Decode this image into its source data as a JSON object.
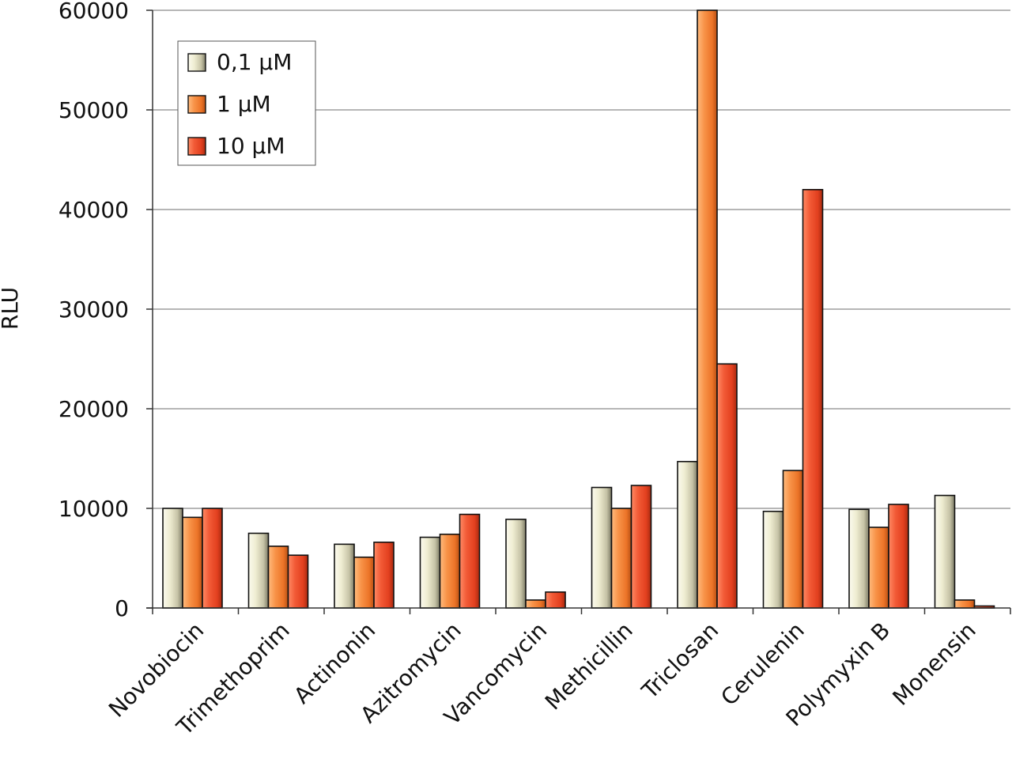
{
  "chart_data": {
    "type": "bar",
    "title": "",
    "xlabel": "",
    "ylabel": "RLU",
    "ylim": [
      0,
      60000
    ],
    "yticks": [
      0,
      10000,
      20000,
      30000,
      40000,
      50000,
      60000
    ],
    "ytick_labels": [
      "0",
      "10000",
      "20000",
      "30000",
      "40000",
      "50000",
      "60000"
    ],
    "grid": true,
    "legend_position": "top-left",
    "categories": [
      "Novobiocin",
      "Trimethoprim",
      "Actinonin",
      "Azitromycin",
      "Vancomycin",
      "Methicillin",
      "Triclosan",
      "Cerulenin",
      "Polymyxin B",
      "Monensin"
    ],
    "series": [
      {
        "name": "0,1 µM",
        "color": "#e8e6c6",
        "values": [
          10000,
          7500,
          6400,
          7100,
          8900,
          12100,
          14700,
          9700,
          9900,
          11300
        ]
      },
      {
        "name": "1 µM",
        "color": "#f5883a",
        "values": [
          9100,
          6200,
          5100,
          7400,
          800,
          10000,
          60000,
          13800,
          8100,
          800
        ]
      },
      {
        "name": "10 µM",
        "color": "#ea4a2c",
        "values": [
          10000,
          5300,
          6600,
          9400,
          1600,
          12300,
          24500,
          42000,
          10400,
          200
        ]
      }
    ]
  }
}
